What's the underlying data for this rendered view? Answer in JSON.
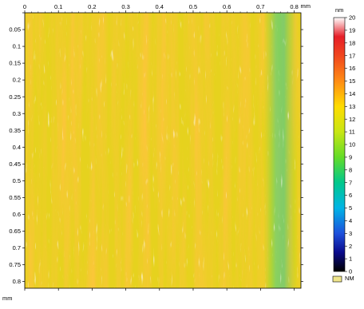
{
  "chart_data": {
    "type": "heatmap",
    "title": "",
    "x_axis": {
      "unit": "mm",
      "range": [
        0,
        0.82
      ],
      "ticks": [
        0,
        0.1,
        0.2,
        0.3,
        0.4,
        0.5,
        0.6,
        0.7,
        0.8
      ],
      "tick_labels": [
        "0",
        "0.1",
        "0.2",
        "0.3",
        "0.4",
        "0.5",
        "0.6",
        "0.7",
        "0.8"
      ]
    },
    "y_axis": {
      "unit": "mm",
      "range": [
        0,
        0.82
      ],
      "inverted": true,
      "ticks": [
        0.05,
        0.1,
        0.15,
        0.2,
        0.25,
        0.3,
        0.35,
        0.4,
        0.45,
        0.5,
        0.55,
        0.6,
        0.65,
        0.7,
        0.75,
        0.8
      ],
      "tick_labels": [
        "0.05",
        "0.1",
        "0.15",
        "0.2",
        "0.25",
        "0.3",
        "0.35",
        "0.4",
        "0.45",
        "0.5",
        "0.55",
        "0.6",
        "0.65",
        "0.7",
        "0.75",
        "0.8"
      ]
    },
    "colorbar": {
      "unit": "nm",
      "range": [
        0,
        20
      ],
      "ticks": [
        0,
        1,
        2,
        3,
        4,
        5,
        6,
        7,
        8,
        9,
        10,
        11,
        12,
        13,
        14,
        15,
        16,
        17,
        18,
        19,
        20
      ],
      "tick_labels": [
        "0",
        "1",
        "2",
        "3",
        "4",
        "5",
        "6",
        "7",
        "8",
        "9",
        "10",
        "11",
        "12",
        "13",
        "14",
        "15",
        "16",
        "17",
        "18",
        "19",
        "20"
      ],
      "stops": [
        {
          "value": 0,
          "color": "#000000"
        },
        {
          "value": 1.5,
          "color": "#0a0a8c"
        },
        {
          "value": 3,
          "color": "#1e50dc"
        },
        {
          "value": 5,
          "color": "#00b4e6"
        },
        {
          "value": 7,
          "color": "#00c88c"
        },
        {
          "value": 9,
          "color": "#64dc28"
        },
        {
          "value": 11,
          "color": "#c8e614"
        },
        {
          "value": 13,
          "color": "#ffdc00"
        },
        {
          "value": 15,
          "color": "#ff8c14"
        },
        {
          "value": 17,
          "color": "#f0461e"
        },
        {
          "value": 18.5,
          "color": "#e61e28"
        },
        {
          "value": 20,
          "color": "#ffffff"
        }
      ]
    },
    "no_measure": {
      "label": "NM",
      "color": "#f0e68c"
    },
    "surface_note": "Height map of striated surface: mostly 11–16 nm, vertical stripes, greener band near x≈0.78 mm."
  }
}
